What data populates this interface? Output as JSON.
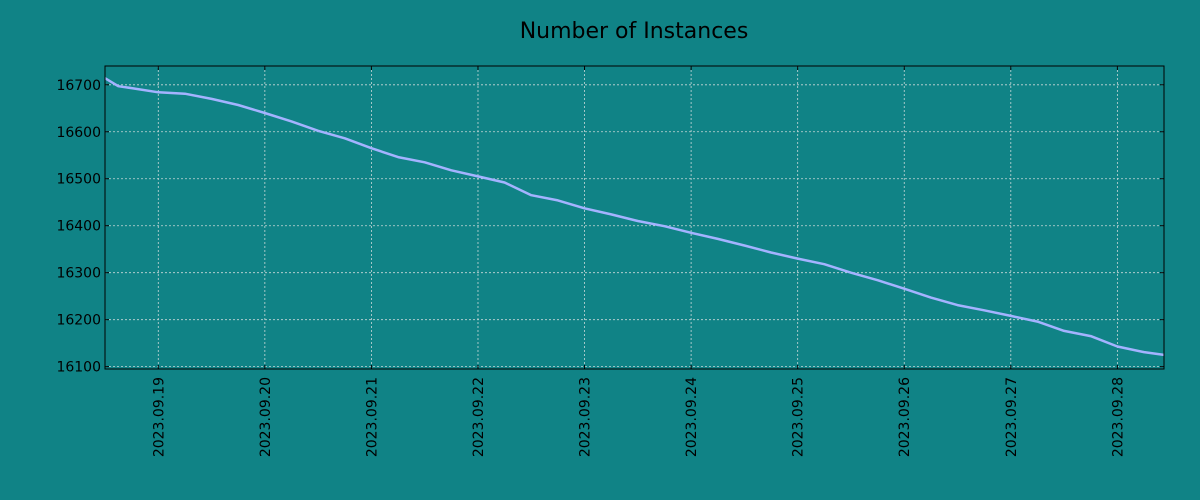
{
  "chart_data": {
    "type": "line",
    "title": "Number of Instances",
    "xlabel": "",
    "ylabel": "",
    "x_type": "date",
    "xlim": [
      "2023-09-18T12:00",
      "2023-09-28T10:30"
    ],
    "ylim": [
      16095,
      16740
    ],
    "y_ticks": [
      16100,
      16200,
      16300,
      16400,
      16500,
      16600,
      16700
    ],
    "y_tick_labels": [
      "16100",
      "16200",
      "16300",
      "16400",
      "16500",
      "16600",
      "16700"
    ],
    "x_ticks": [
      "2023-09-19",
      "2023-09-20",
      "2023-09-21",
      "2023-09-22",
      "2023-09-23",
      "2023-09-24",
      "2023-09-25",
      "2023-09-26",
      "2023-09-27",
      "2023-09-28"
    ],
    "x_tick_labels": [
      "2023.09.19",
      "2023.09.20",
      "2023.09.21",
      "2023.09.22",
      "2023.09.23",
      "2023.09.24",
      "2023.09.25",
      "2023.09.26",
      "2023.09.27",
      "2023.09.28"
    ],
    "grid": true,
    "colors": {
      "background": "#108386",
      "line": "#a4b3ff",
      "grid": "#c8d8d8",
      "axis": "#000000"
    },
    "series": [
      {
        "x": [
          "2023-09-18T12:00",
          "2023-09-18T15:00",
          "2023-09-18T18:00",
          "2023-09-19T00:00",
          "2023-09-19T06:00",
          "2023-09-19T12:00",
          "2023-09-19T18:00",
          "2023-09-20T00:00",
          "2023-09-20T06:00",
          "2023-09-20T12:00",
          "2023-09-20T18:00",
          "2023-09-21T00:00",
          "2023-09-21T06:00",
          "2023-09-21T12:00",
          "2023-09-21T18:00",
          "2023-09-22T00:00",
          "2023-09-22T06:00",
          "2023-09-22T12:00",
          "2023-09-22T18:00",
          "2023-09-23T00:00",
          "2023-09-23T06:00",
          "2023-09-23T12:00",
          "2023-09-23T18:00",
          "2023-09-24T00:00",
          "2023-09-24T06:00",
          "2023-09-24T12:00",
          "2023-09-24T18:00",
          "2023-09-25T00:00",
          "2023-09-25T06:00",
          "2023-09-25T12:00",
          "2023-09-25T18:00",
          "2023-09-26T00:00",
          "2023-09-26T06:00",
          "2023-09-26T12:00",
          "2023-09-26T18:00",
          "2023-09-27T00:00",
          "2023-09-27T06:00",
          "2023-09-27T12:00",
          "2023-09-27T18:00",
          "2023-09-28T00:00",
          "2023-09-28T06:00",
          "2023-09-28T10:30"
        ],
        "values": [
          16714,
          16697,
          16693,
          16684,
          16681,
          16670,
          16657,
          16640,
          16622,
          16602,
          16586,
          16565,
          16546,
          16535,
          16518,
          16505,
          16492,
          16465,
          16454,
          16437,
          16424,
          16410,
          16399,
          16385,
          16372,
          16358,
          16343,
          16330,
          16318,
          16300,
          16284,
          16266,
          16247,
          16231,
          16220,
          16208,
          16196,
          16176,
          16165,
          16143,
          16131,
          16125
        ]
      }
    ]
  }
}
